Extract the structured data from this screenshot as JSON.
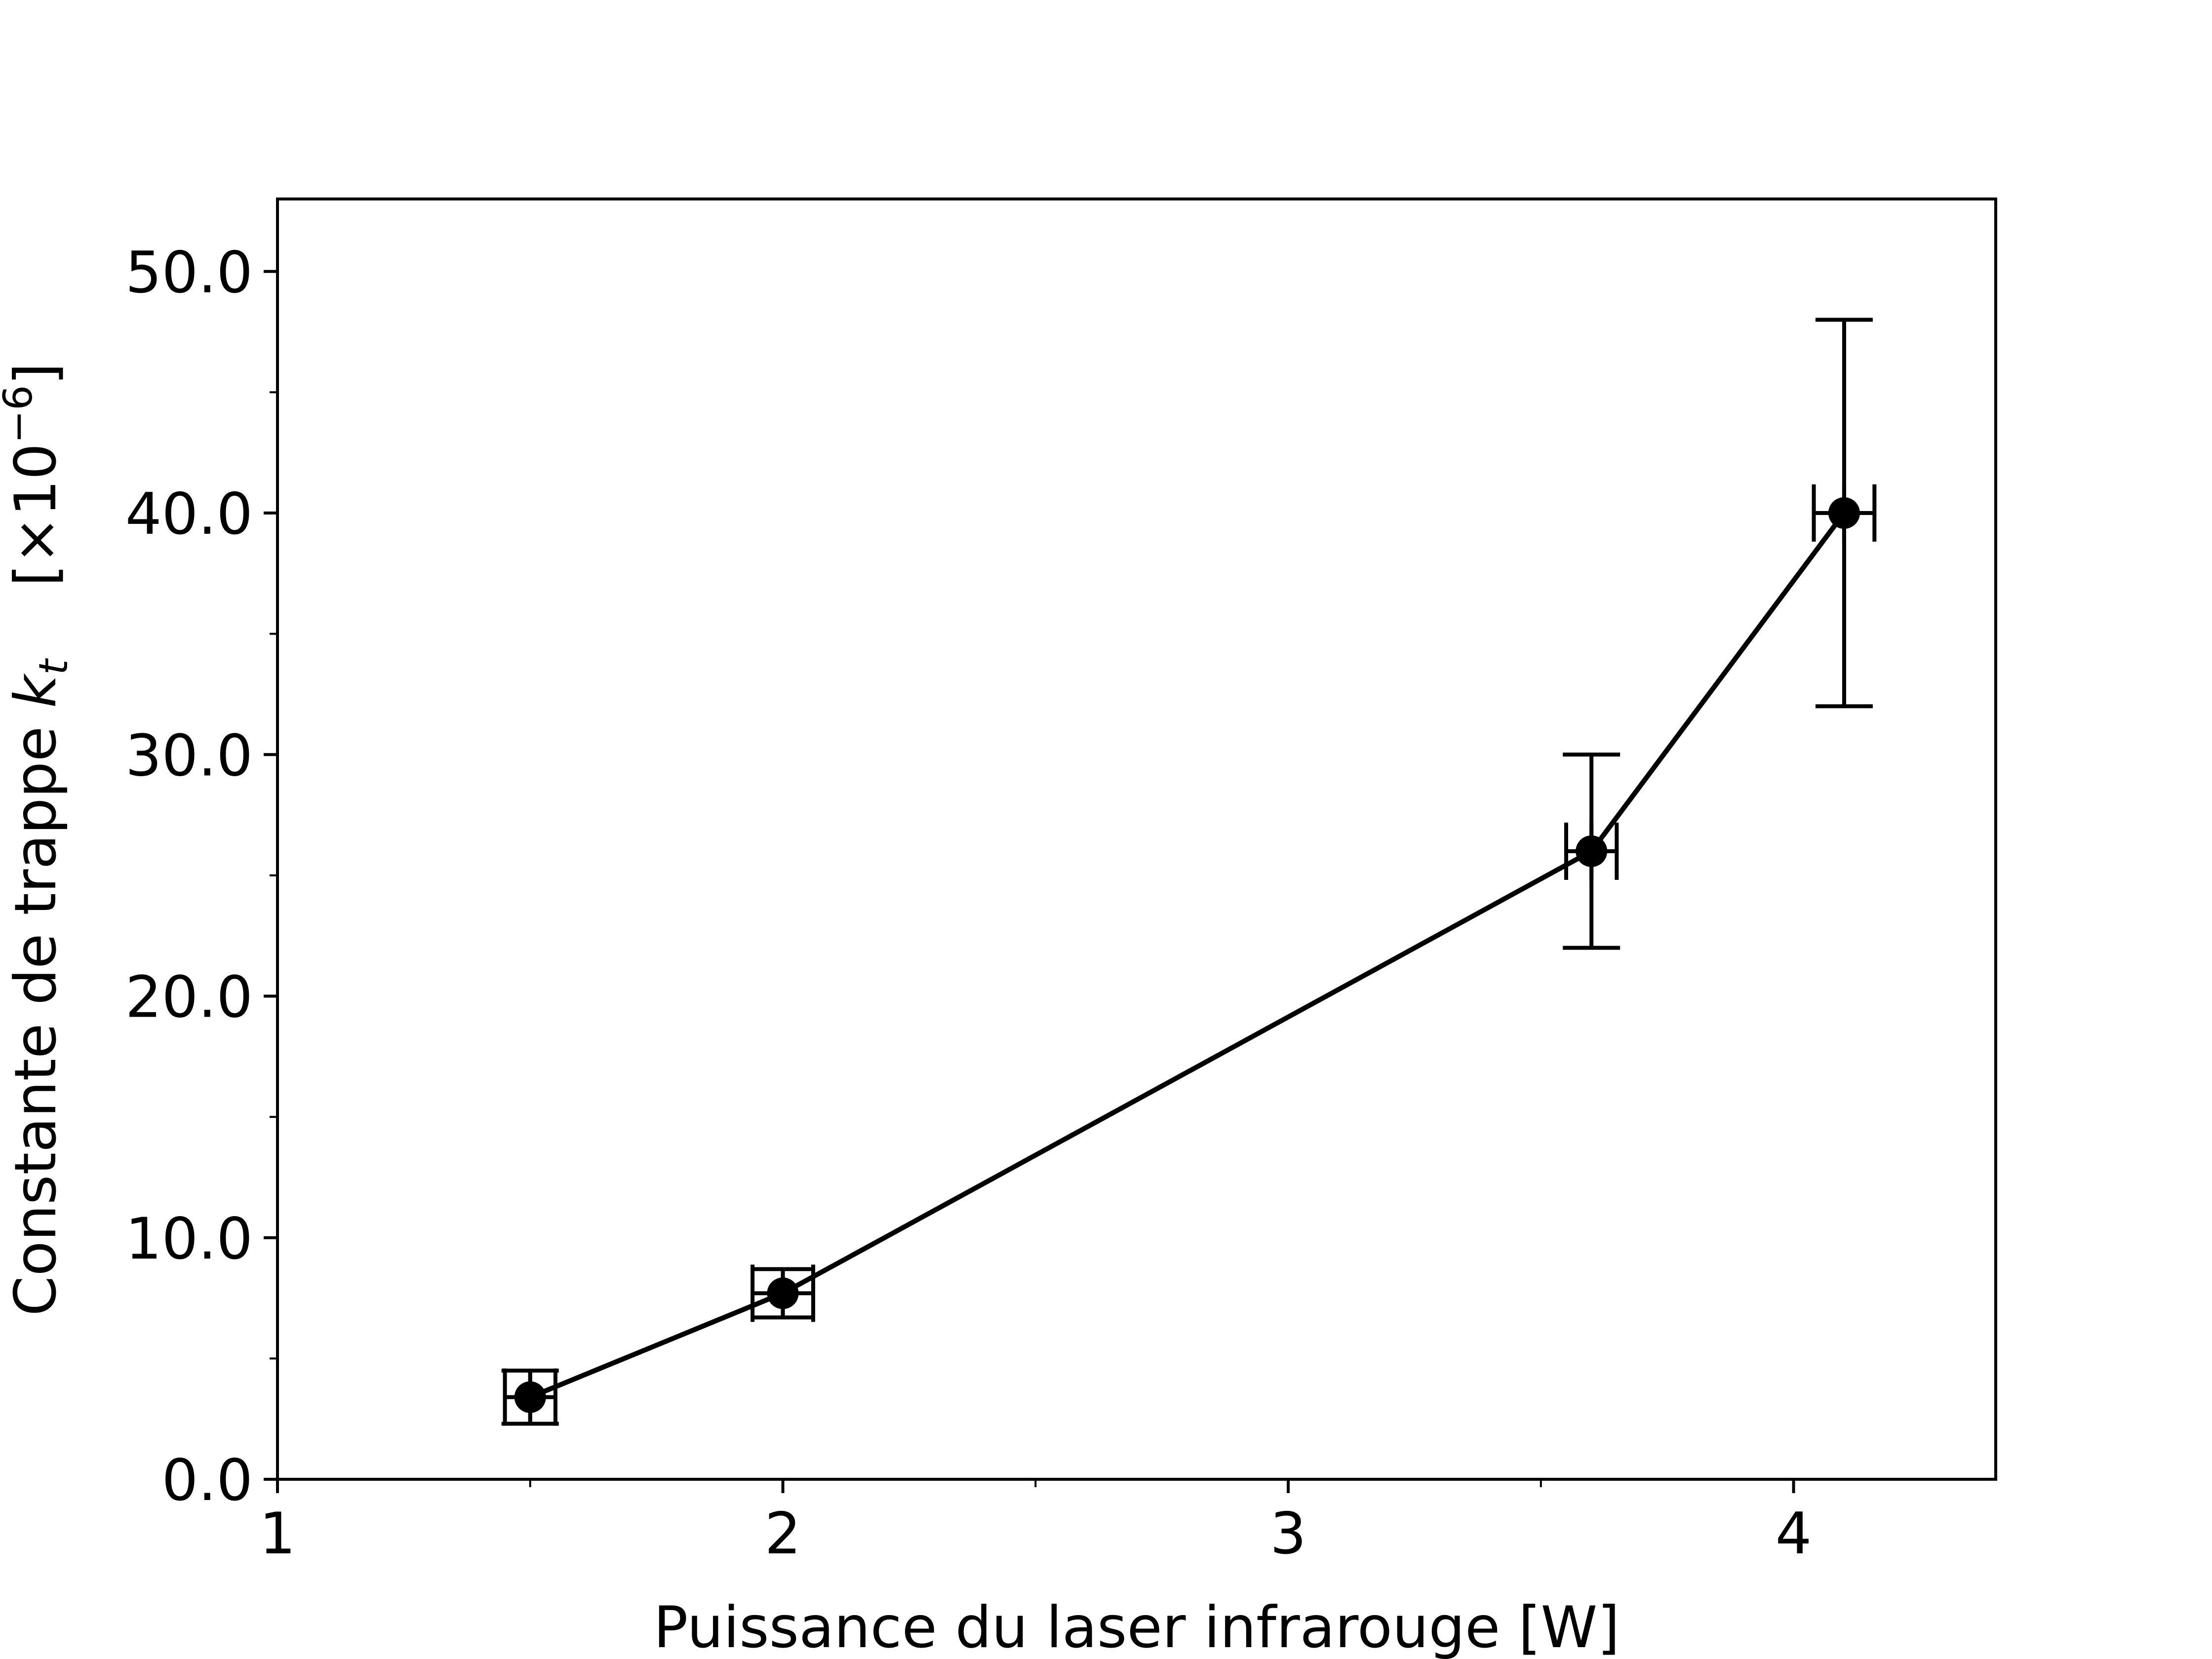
{
  "chart_data": {
    "type": "line",
    "title": "",
    "xlabel": "Puissance du laser infrarouge [W]",
    "ylabel": {
      "prefix": "Constante de trappe ",
      "symbol": "k",
      "subscript": "t",
      "unit_text": "[×10",
      "unit_exponent": "−6",
      "unit_close": "]"
    },
    "xlim": [
      1.0,
      4.4
    ],
    "ylim": [
      0.0,
      53.0
    ],
    "x_ticks": [
      1,
      2,
      3,
      4
    ],
    "x_tick_labels": [
      "1",
      "2",
      "3",
      "4"
    ],
    "x_minor_ticks": [
      1.5,
      2.5,
      3.5
    ],
    "y_ticks": [
      0,
      10,
      20,
      30,
      40,
      50
    ],
    "y_tick_labels": [
      "0.0",
      "10.0",
      "20.0",
      "30.0",
      "40.0",
      "50.0"
    ],
    "y_minor_ticks": [
      5,
      15,
      25,
      35,
      45
    ],
    "grid": false,
    "legend": "none",
    "series": [
      {
        "color": "#000000",
        "marker": "circle",
        "x": [
          1.5,
          2.0,
          3.6,
          4.1
        ],
        "y": [
          3.4,
          7.7,
          26.0,
          40.0
        ],
        "x_err": [
          0.05,
          0.06,
          0.05,
          0.06
        ],
        "y_err": [
          1.1,
          1.0,
          4.0,
          8.0
        ],
        "y_err_inner": [
          1.1,
          1.0,
          1.2,
          1.2
        ]
      }
    ]
  }
}
